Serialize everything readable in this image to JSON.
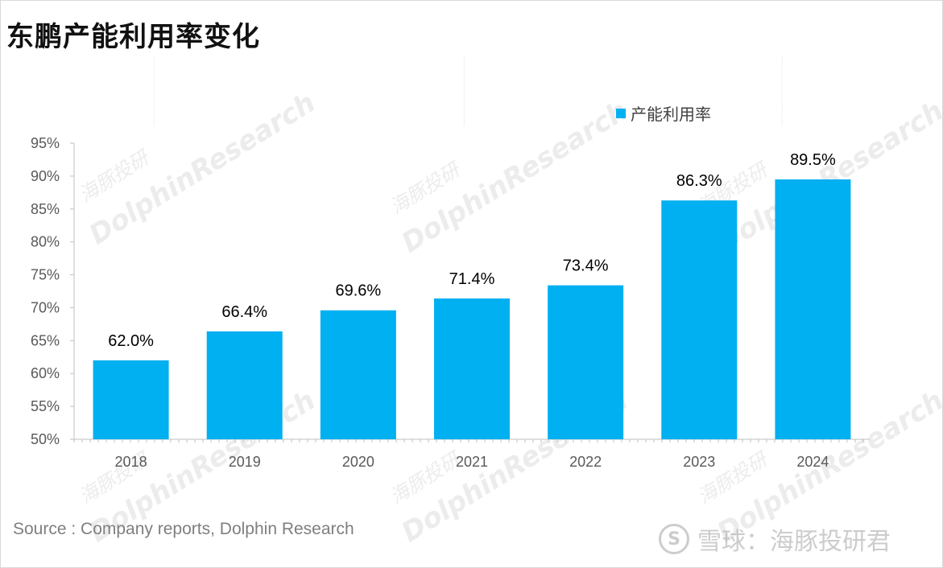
{
  "title": "东鹏产能利用率变化",
  "source": "Source : Company reports, Dolphin Research",
  "footer": {
    "brand": "雪球：海豚投研君",
    "logo_glyph": "S"
  },
  "watermark": {
    "en": "DolphinResearch",
    "cn": "海豚投研"
  },
  "colors": {
    "bar": "#00b0f0",
    "axis": "#bfbfbf"
  },
  "chart_data": {
    "type": "bar",
    "title": "东鹏产能利用率变化",
    "categories": [
      "2018",
      "2019",
      "2020",
      "2021",
      "2022",
      "2023",
      "2024"
    ],
    "series": [
      {
        "name": "产能利用率",
        "values": [
          62.0,
          66.4,
          69.6,
          71.4,
          73.4,
          86.3,
          89.5
        ]
      }
    ],
    "data_labels": [
      "62.0%",
      "66.4%",
      "69.6%",
      "71.4%",
      "73.4%",
      "86.3%",
      "89.5%"
    ],
    "y_ticks": [
      50,
      55,
      60,
      65,
      70,
      75,
      80,
      85,
      90,
      95
    ],
    "y_tick_labels": [
      "50%",
      "55%",
      "60%",
      "65%",
      "70%",
      "75%",
      "80%",
      "85%",
      "90%",
      "95%"
    ],
    "ylim": [
      50,
      95
    ],
    "xlabel": "",
    "ylabel": "",
    "legend_position": "top-right",
    "grid": false
  }
}
